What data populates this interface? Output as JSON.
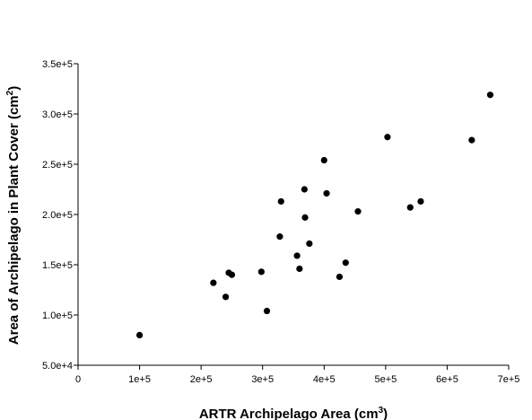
{
  "chart_data": {
    "type": "scatter",
    "xlabel": "ARTR Archipelago Area (cm",
    "xlabel_sup": "3",
    "xlabel_end": ")",
    "ylabel": "Area of Archipelago in Plant Cover (cm",
    "ylabel_sup": "2",
    "ylabel_end": ")",
    "xlim": [
      0,
      700000
    ],
    "ylim": [
      50000,
      350000
    ],
    "x_ticks": [
      0,
      100000,
      200000,
      300000,
      400000,
      500000,
      600000,
      700000
    ],
    "x_tick_labels": [
      "0",
      "1e+5",
      "2e+5",
      "3e+5",
      "4e+5",
      "5e+5",
      "6e+5",
      "7e+5"
    ],
    "y_ticks": [
      50000,
      100000,
      150000,
      200000,
      250000,
      300000,
      350000
    ],
    "y_tick_labels": [
      "5.0e+4",
      "1.0e+5",
      "1.5e+5",
      "2.0e+5",
      "2.5e+5",
      "3.0e+5",
      "3.5e+5"
    ],
    "grid": false,
    "marker_color": "#000000",
    "points": [
      {
        "x": 100000,
        "y": 80000
      },
      {
        "x": 220000,
        "y": 132000
      },
      {
        "x": 240000,
        "y": 118000
      },
      {
        "x": 245000,
        "y": 142000
      },
      {
        "x": 250000,
        "y": 140000
      },
      {
        "x": 298000,
        "y": 143000
      },
      {
        "x": 307000,
        "y": 104000
      },
      {
        "x": 328000,
        "y": 178000
      },
      {
        "x": 330000,
        "y": 213000
      },
      {
        "x": 356000,
        "y": 159000
      },
      {
        "x": 360000,
        "y": 146000
      },
      {
        "x": 368000,
        "y": 225000
      },
      {
        "x": 369000,
        "y": 197000
      },
      {
        "x": 376000,
        "y": 171000
      },
      {
        "x": 400000,
        "y": 254000
      },
      {
        "x": 404000,
        "y": 221000
      },
      {
        "x": 425000,
        "y": 138000
      },
      {
        "x": 435000,
        "y": 152000
      },
      {
        "x": 455000,
        "y": 203000
      },
      {
        "x": 503000,
        "y": 277000
      },
      {
        "x": 540000,
        "y": 207000
      },
      {
        "x": 557000,
        "y": 213000
      },
      {
        "x": 640000,
        "y": 274000
      },
      {
        "x": 670000,
        "y": 319000
      }
    ]
  }
}
